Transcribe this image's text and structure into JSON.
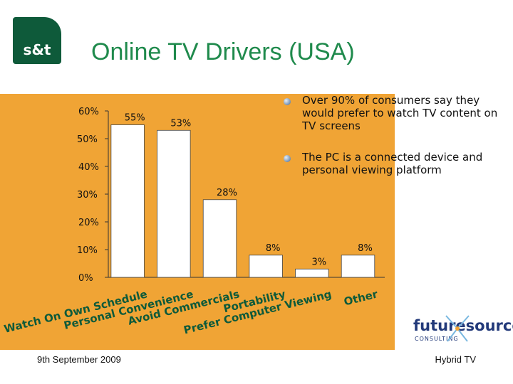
{
  "logo": {
    "text": "s&t"
  },
  "title": "Online TV Drivers (USA)",
  "bullets": [
    "Over 90% of consumers say they would prefer to watch TV content on TV screens",
    "The PC is a connected device and personal viewing platform"
  ],
  "footer": {
    "date": "9th September 2009",
    "right": "Hybrid TV"
  },
  "partner_logo": {
    "word": "futuresource",
    "sub": "CONSULTING"
  },
  "colors": {
    "panel": "#f0a435",
    "title": "#1f8a4c",
    "logo_bg": "#0e5a3a",
    "category_text": "#0e5a3a",
    "bar": "#ffffff"
  },
  "chart_data": {
    "type": "bar",
    "categories": [
      "Watch On Own Schedule",
      "Personal Convenience",
      "Avoid Commercials",
      "Portability",
      "Prefer Computer Viewing",
      "Other"
    ],
    "values": [
      55,
      53,
      28,
      8,
      3,
      8
    ],
    "data_labels": [
      "55%",
      "53%",
      "28%",
      "8%",
      "3%",
      "8%"
    ],
    "ylim": [
      0,
      60
    ],
    "yticks": [
      0,
      10,
      20,
      30,
      40,
      50,
      60
    ],
    "ytick_labels": [
      "0%",
      "10%",
      "20%",
      "30%",
      "40%",
      "50%",
      "60%"
    ],
    "title": "",
    "xlabel": "",
    "ylabel": "",
    "grid": false,
    "legend": "none"
  }
}
